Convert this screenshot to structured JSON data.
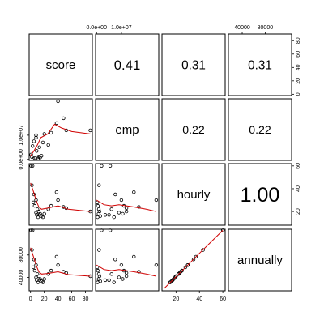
{
  "chart_data": {
    "type": "scatter",
    "variables": [
      "score",
      "emp",
      "hourly",
      "annually"
    ],
    "diagonal_labels": [
      "score",
      "emp",
      "hourly",
      "annually"
    ],
    "correlations": [
      {
        "row": 0,
        "col": 1,
        "label": "0.41",
        "value": 0.41
      },
      {
        "row": 0,
        "col": 2,
        "label": "0.31",
        "value": 0.31
      },
      {
        "row": 0,
        "col": 3,
        "label": "0.31",
        "value": 0.31
      },
      {
        "row": 1,
        "col": 2,
        "label": "0.22",
        "value": 0.22
      },
      {
        "row": 1,
        "col": 3,
        "label": "0.22",
        "value": 0.22
      },
      {
        "row": 2,
        "col": 3,
        "label": "1.00",
        "value": 1.0
      }
    ],
    "axes": {
      "score": {
        "range": [
          -2,
          90
        ],
        "ticks": [
          0,
          20,
          40,
          60,
          80
        ],
        "tick_labels": [
          "0",
          "20",
          "40",
          "60",
          "80"
        ]
      },
      "emp": {
        "range": [
          -400000,
          25000000
        ],
        "ticks": [
          0,
          10000000
        ],
        "tick_labels": [
          "0.0e+00",
          "1.0e+07"
        ]
      },
      "hourly": {
        "range": [
          8,
          62
        ],
        "ticks": [
          20,
          40,
          60
        ],
        "tick_labels": [
          "20",
          "40",
          "60"
        ]
      },
      "annually": {
        "range": [
          16000,
          126000
        ],
        "ticks": [
          40000,
          80000
        ],
        "tick_labels": [
          "40000",
          "80000"
        ]
      }
    },
    "observations": [
      {
        "score": 1,
        "emp": 2000000,
        "hourly": 60,
        "annually": 124000
      },
      {
        "score": 3,
        "emp": 5500000,
        "hourly": 60,
        "annually": 124000
      },
      {
        "score": 2,
        "emp": 1000000,
        "hourly": 43,
        "annually": 89000
      },
      {
        "score": 5,
        "emp": 7500000,
        "hourly": 35,
        "annually": 72000
      },
      {
        "score": 8,
        "emp": 10000000,
        "hourly": 30,
        "annually": 62000
      },
      {
        "score": 4,
        "emp": 300000,
        "hourly": 28,
        "annually": 58000
      },
      {
        "score": 6,
        "emp": 500000,
        "hourly": 25,
        "annually": 52000
      },
      {
        "score": 10,
        "emp": 900000,
        "hourly": 22,
        "annually": 46000
      },
      {
        "score": 12,
        "emp": 1200000,
        "hourly": 20,
        "annually": 42000
      },
      {
        "score": 8,
        "emp": 9000000,
        "hourly": 19,
        "annually": 40000
      },
      {
        "score": 14,
        "emp": 800000,
        "hourly": 18,
        "annually": 37000
      },
      {
        "score": 9,
        "emp": 3500000,
        "hourly": 17,
        "annually": 35000
      },
      {
        "score": 16,
        "emp": 1500000,
        "hourly": 16,
        "annually": 33000
      },
      {
        "score": 11,
        "emp": 400000,
        "hourly": 15,
        "annually": 31000
      },
      {
        "score": 18,
        "emp": 7000000,
        "hourly": 15,
        "annually": 31000
      },
      {
        "score": 13,
        "emp": 5000000,
        "hourly": 17,
        "annually": 35000
      },
      {
        "score": 20,
        "emp": 10500000,
        "hourly": 18,
        "annually": 37000
      },
      {
        "score": 26,
        "emp": 6000000,
        "hourly": 22,
        "annually": 46000
      },
      {
        "score": 30,
        "emp": 11000000,
        "hourly": 25,
        "annually": 52000
      },
      {
        "score": 38,
        "emp": 15000000,
        "hourly": 37,
        "annually": 77000
      },
      {
        "score": 40,
        "emp": 24000000,
        "hourly": 30,
        "annually": 62000
      },
      {
        "score": 48,
        "emp": 17000000,
        "hourly": 24,
        "annually": 50000
      },
      {
        "score": 52,
        "emp": 12000000,
        "hourly": 23,
        "annually": 48000
      },
      {
        "score": 87,
        "emp": 12000000,
        "hourly": 20,
        "annually": 42000
      }
    ],
    "smoothers": {
      "emp_vs_score": [
        [
          0,
          1500000
        ],
        [
          5,
          3500000
        ],
        [
          10,
          6000000
        ],
        [
          15,
          9000000
        ],
        [
          25,
          10500000
        ],
        [
          35,
          14500000
        ],
        [
          45,
          13000000
        ],
        [
          60,
          11500000
        ],
        [
          87,
          10500000
        ]
      ],
      "hourly_vs_score": [
        [
          0,
          45
        ],
        [
          4,
          38
        ],
        [
          8,
          30
        ],
        [
          12,
          24
        ],
        [
          16,
          22
        ],
        [
          25,
          23
        ],
        [
          40,
          25
        ],
        [
          55,
          22
        ],
        [
          87,
          20
        ]
      ],
      "annually_vs_score": [
        [
          0,
          93000
        ],
        [
          4,
          78000
        ],
        [
          8,
          62000
        ],
        [
          12,
          50000
        ],
        [
          16,
          46000
        ],
        [
          25,
          47000
        ],
        [
          40,
          50000
        ],
        [
          55,
          45000
        ],
        [
          87,
          42000
        ]
      ],
      "hourly_vs_emp": [
        [
          0,
          30
        ],
        [
          3000000,
          26
        ],
        [
          6000000,
          25
        ],
        [
          9000000,
          26
        ],
        [
          12000000,
          25
        ],
        [
          15000000,
          24
        ],
        [
          20000000,
          22
        ],
        [
          24000000,
          20
        ]
      ],
      "annually_vs_emp": [
        [
          0,
          62000
        ],
        [
          3000000,
          54000
        ],
        [
          6000000,
          52000
        ],
        [
          9000000,
          54000
        ],
        [
          12000000,
          52000
        ],
        [
          15000000,
          50000
        ],
        [
          20000000,
          46000
        ],
        [
          24000000,
          42000
        ]
      ],
      "annually_vs_hourly": [
        [
          10,
          20500
        ],
        [
          20,
          41000
        ],
        [
          30,
          62000
        ],
        [
          40,
          83000
        ],
        [
          50,
          103500
        ],
        [
          60,
          124000
        ]
      ]
    }
  }
}
